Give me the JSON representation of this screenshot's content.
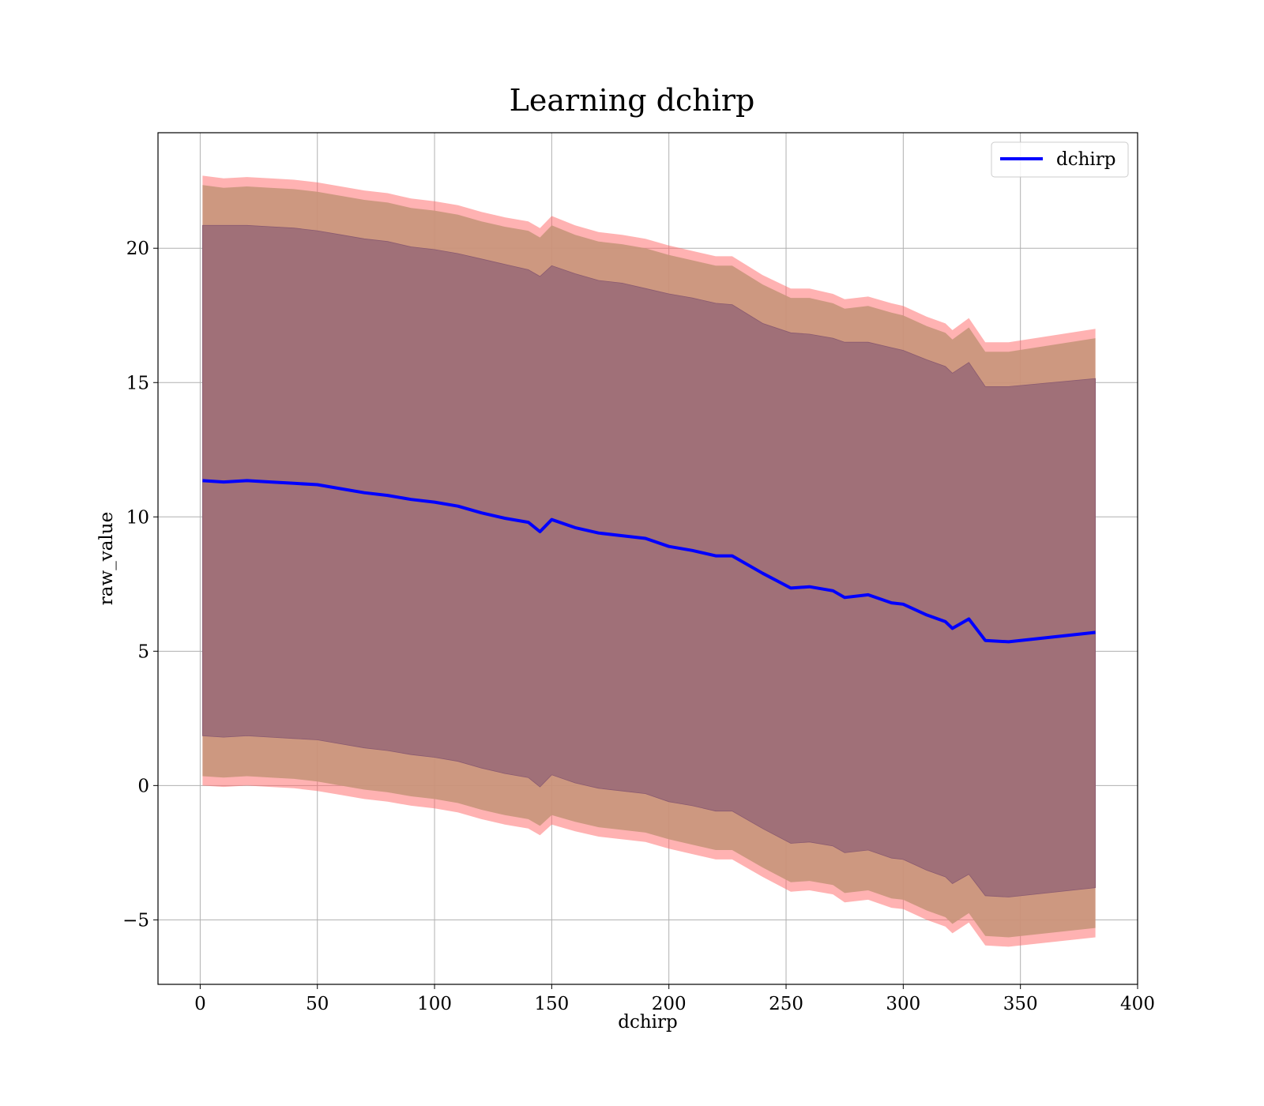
{
  "chart_data": {
    "type": "line",
    "title": "Learning dchirp",
    "xlabel": "dchirp",
    "ylabel": "raw_value",
    "xlim": [
      -18,
      400
    ],
    "ylim": [
      -7.4,
      24.3
    ],
    "grid": true,
    "legend_position": "top-right",
    "x_ticks": [
      0,
      50,
      100,
      150,
      200,
      250,
      300,
      350,
      400
    ],
    "x_tick_labels": [
      "0",
      "50",
      "100",
      "150",
      "200",
      "250",
      "300",
      "350",
      "400"
    ],
    "y_ticks": [
      -5,
      0,
      5,
      10,
      15,
      20
    ],
    "y_tick_labels": [
      "−5",
      "0",
      "5",
      "10",
      "15",
      "20"
    ],
    "x": [
      1,
      10,
      20,
      30,
      40,
      50,
      60,
      70,
      80,
      90,
      100,
      110,
      120,
      130,
      140,
      145,
      150,
      160,
      170,
      180,
      190,
      200,
      210,
      220,
      227,
      240,
      252,
      260,
      270,
      275,
      285,
      295,
      300,
      310,
      318,
      321,
      328,
      335,
      345,
      382
    ],
    "series": [
      {
        "name": "dchirp",
        "color": "#0000ff",
        "values": [
          11.35,
          11.3,
          11.35,
          11.3,
          11.25,
          11.2,
          11.05,
          10.9,
          10.8,
          10.65,
          10.55,
          10.4,
          10.15,
          9.95,
          9.8,
          9.45,
          9.9,
          9.6,
          9.4,
          9.3,
          9.2,
          8.9,
          8.75,
          8.55,
          8.55,
          7.9,
          7.35,
          7.4,
          7.25,
          7.0,
          7.1,
          6.8,
          6.75,
          6.35,
          6.1,
          5.85,
          6.2,
          5.4,
          5.35,
          5.7
        ]
      },
      {
        "name": "inner band upper",
        "color": "#800040",
        "values": [
          20.85,
          20.85,
          20.85,
          20.8,
          20.75,
          20.65,
          20.5,
          20.35,
          20.25,
          20.05,
          19.95,
          19.8,
          19.6,
          19.4,
          19.2,
          18.95,
          19.35,
          19.05,
          18.8,
          18.7,
          18.5,
          18.3,
          18.15,
          17.95,
          17.9,
          17.2,
          16.85,
          16.8,
          16.65,
          16.5,
          16.5,
          16.3,
          16.2,
          15.85,
          15.6,
          15.35,
          15.75,
          14.85,
          14.85,
          15.15
        ]
      },
      {
        "name": "inner band lower",
        "color": "#800040",
        "values": [
          1.85,
          1.8,
          1.85,
          1.8,
          1.75,
          1.7,
          1.55,
          1.4,
          1.3,
          1.15,
          1.05,
          0.9,
          0.65,
          0.45,
          0.3,
          -0.05,
          0.4,
          0.1,
          -0.1,
          -0.2,
          -0.3,
          -0.6,
          -0.75,
          -0.95,
          -0.95,
          -1.6,
          -2.15,
          -2.1,
          -2.25,
          -2.5,
          -2.4,
          -2.7,
          -2.75,
          -3.15,
          -3.4,
          -3.65,
          -3.3,
          -4.1,
          -4.15,
          -3.8
        ]
      },
      {
        "name": "outer band upper",
        "color": "#ff6666",
        "values": [
          22.7,
          22.6,
          22.65,
          22.6,
          22.55,
          22.45,
          22.3,
          22.15,
          22.05,
          21.85,
          21.75,
          21.6,
          21.35,
          21.15,
          21.0,
          20.75,
          21.2,
          20.85,
          20.6,
          20.5,
          20.35,
          20.1,
          19.9,
          19.7,
          19.7,
          19.0,
          18.5,
          18.5,
          18.3,
          18.1,
          18.2,
          17.95,
          17.85,
          17.45,
          17.2,
          16.95,
          17.4,
          16.5,
          16.5,
          17.0
        ]
      },
      {
        "name": "outer band lower",
        "color": "#ff6666",
        "values": [
          0.0,
          -0.05,
          0.0,
          -0.05,
          -0.1,
          -0.2,
          -0.35,
          -0.5,
          -0.6,
          -0.75,
          -0.85,
          -1.0,
          -1.25,
          -1.45,
          -1.6,
          -1.85,
          -1.45,
          -1.7,
          -1.9,
          -2.0,
          -2.1,
          -2.35,
          -2.55,
          -2.75,
          -2.75,
          -3.4,
          -3.95,
          -3.9,
          -4.05,
          -4.35,
          -4.25,
          -4.55,
          -4.6,
          -5.0,
          -5.25,
          -5.5,
          -5.1,
          -5.95,
          -6.0,
          -5.65
        ]
      }
    ]
  },
  "legend": {
    "label": "dchirp",
    "color": "#0000ff"
  },
  "colors": {
    "outer_band": "#ff6666",
    "middle_band": "#c8957a",
    "inner_band": "#a07078",
    "line": "#0000ff"
  }
}
